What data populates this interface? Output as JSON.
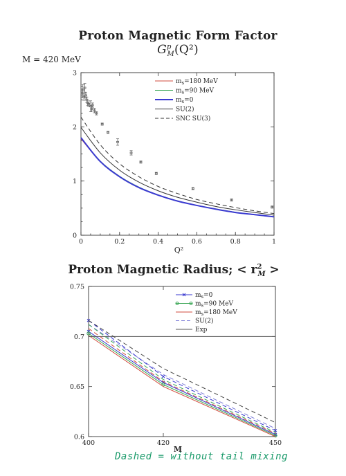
{
  "page": {
    "title1_text": "Proton Magnetic Form Factor ",
    "title1_math": "G",
    "title1_sup": "p",
    "title1_sub": "M",
    "title1_tail": "(Q²)",
    "subtitle": "M = 420 MeV",
    "title2_text": "Proton Magnetic Radius; < r",
    "title2_sup": "2",
    "title2_sub": "M",
    "title2_tail": " >",
    "note": "Dashed = without tail mixing"
  },
  "chart_data": [
    {
      "type": "line",
      "xlabel": "Q²",
      "ylabel": "",
      "xlim": [
        0,
        1
      ],
      "ylim": [
        0,
        3
      ],
      "xticks": [
        "0",
        "0.2",
        "0.4",
        "0.6",
        "0.8",
        "1"
      ],
      "yticks": [
        "0",
        "1",
        "2",
        "3"
      ],
      "legend_position": "top-right",
      "series": [
        {
          "name": "m_s=180 MeV",
          "color": "#d24b3e",
          "dash": "solid",
          "x": [
            0,
            0.1,
            0.2,
            0.3,
            0.4,
            0.5,
            0.6,
            0.7,
            0.8,
            0.9,
            1.0
          ],
          "y": [
            1.78,
            1.36,
            1.08,
            0.88,
            0.74,
            0.63,
            0.55,
            0.48,
            0.42,
            0.38,
            0.34
          ]
        },
        {
          "name": "m_s=90 MeV",
          "color": "#3aa655",
          "dash": "solid",
          "x": [
            0,
            0.1,
            0.2,
            0.3,
            0.4,
            0.5,
            0.6,
            0.7,
            0.8,
            0.9,
            1.0
          ],
          "y": [
            1.8,
            1.37,
            1.09,
            0.89,
            0.745,
            0.635,
            0.552,
            0.485,
            0.425,
            0.382,
            0.342
          ]
        },
        {
          "name": "m_s=0",
          "color": "#3a3ad0",
          "dash": "solid",
          "x": [
            0,
            0.1,
            0.2,
            0.3,
            0.4,
            0.5,
            0.6,
            0.7,
            0.8,
            0.9,
            1.0
          ],
          "y": [
            1.8,
            1.36,
            1.08,
            0.88,
            0.74,
            0.63,
            0.55,
            0.48,
            0.42,
            0.38,
            0.34
          ]
        },
        {
          "name": "SU(2)",
          "color": "#333333",
          "dash": "solid",
          "x": [
            0,
            0.1,
            0.2,
            0.3,
            0.4,
            0.5,
            0.6,
            0.7,
            0.8,
            0.9,
            1.0
          ],
          "y": [
            1.99,
            1.52,
            1.2,
            0.98,
            0.82,
            0.7,
            0.61,
            0.53,
            0.47,
            0.42,
            0.37
          ]
        },
        {
          "name": "SNC SU(3)",
          "color": "#333333",
          "dash": "dashed",
          "x": [
            0,
            0.1,
            0.2,
            0.3,
            0.4,
            0.5,
            0.6,
            0.7,
            0.8,
            0.9,
            1.0
          ],
          "y": [
            2.18,
            1.67,
            1.32,
            1.08,
            0.9,
            0.77,
            0.66,
            0.58,
            0.51,
            0.45,
            0.4
          ]
        }
      ],
      "experiment_points": {
        "x": [
          0.005,
          0.01,
          0.015,
          0.02,
          0.025,
          0.03,
          0.035,
          0.04,
          0.05,
          0.055,
          0.06,
          0.07,
          0.08,
          0.11,
          0.14,
          0.19,
          0.26,
          0.31,
          0.39,
          0.58,
          0.78,
          0.99
        ],
        "y": [
          2.62,
          2.68,
          2.55,
          2.72,
          2.58,
          2.5,
          2.44,
          2.42,
          2.38,
          2.33,
          2.4,
          2.3,
          2.25,
          2.05,
          1.9,
          1.72,
          1.52,
          1.35,
          1.14,
          0.86,
          0.65,
          0.52
        ],
        "err": [
          0.08,
          0.1,
          0.06,
          0.08,
          0.05,
          0.05,
          0.05,
          0.04,
          0.1,
          0.04,
          0.04,
          0.04,
          0.03,
          0.02,
          0.02,
          0.06,
          0.04,
          0.02,
          0.02,
          0.02,
          0.02,
          0.02
        ]
      }
    },
    {
      "type": "line",
      "xlabel": "M",
      "ylabel": "",
      "xlim": [
        400,
        450
      ],
      "ylim": [
        0.6,
        0.75
      ],
      "xticks": [
        "400",
        "420",
        "450"
      ],
      "yticks": [
        "0.6",
        "0.65",
        "0.7",
        "0.75"
      ],
      "legend_position": "top-right",
      "series": [
        {
          "name": "m_s=0",
          "color": "#3a3ad0",
          "dash": "solid",
          "marker": "x",
          "x": [
            400,
            420,
            450
          ],
          "y": [
            0.705,
            0.654,
            0.602
          ]
        },
        {
          "name": "m_s=90 MeV",
          "color": "#3aa655",
          "dash": "solid",
          "marker": "o",
          "x": [
            400,
            420,
            450
          ],
          "y": [
            0.703,
            0.652,
            0.601
          ]
        },
        {
          "name": "m_s=180 MeV",
          "color": "#d24b3e",
          "dash": "solid",
          "marker": "",
          "x": [
            400,
            420,
            450
          ],
          "y": [
            0.701,
            0.65,
            0.6
          ]
        },
        {
          "name": "SU(2)",
          "color": "#7d7dd8",
          "dash": "dashed",
          "marker": "",
          "x": [
            400,
            420,
            450
          ],
          "y": [
            0.712,
            0.662,
            0.608
          ]
        },
        {
          "name": "Exp",
          "color": "#555555",
          "dash": "solid",
          "marker": "",
          "x": [
            400,
            450
          ],
          "y": [
            0.7,
            0.7
          ]
        },
        {
          "name": "",
          "color": "#3a3ad0",
          "dash": "dashed",
          "marker": "x",
          "x": [
            400,
            420,
            450
          ],
          "y": [
            0.716,
            0.66,
            0.606
          ]
        },
        {
          "name": "",
          "color": "#3aa655",
          "dash": "dashed",
          "marker": "",
          "x": [
            400,
            420,
            450
          ],
          "y": [
            0.712,
            0.657,
            0.604
          ]
        },
        {
          "name": "",
          "color": "#d24b3e",
          "dash": "dashed",
          "marker": "",
          "x": [
            400,
            420,
            450
          ],
          "y": [
            0.708,
            0.655,
            0.603
          ]
        },
        {
          "name": "",
          "color": "#444444",
          "dash": "dashed",
          "marker": "",
          "x": [
            400,
            420,
            450
          ],
          "y": [
            0.716,
            0.668,
            0.614
          ]
        }
      ]
    }
  ]
}
